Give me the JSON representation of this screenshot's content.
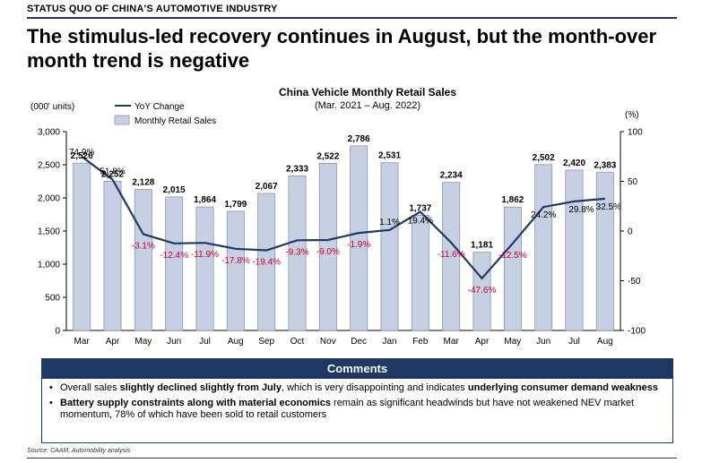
{
  "section_label": "STATUS QUO OF CHINA'S AUTOMOTIVE INDUSTRY",
  "headline": "The stimulus-led recovery continues in August, but the month-over month trend is negative",
  "chart_data": {
    "type": "bar",
    "title": "China Vehicle Monthly Retail Sales",
    "subtitle": "(Mar. 2021 – Aug. 2022)",
    "ylabel_left": "(000' units)",
    "ylabel_right": "(%)",
    "ylim_left": [
      0,
      3000
    ],
    "ylim_right": [
      -100,
      100
    ],
    "left_ticks": [
      "0",
      "500",
      "1,000",
      "1,500",
      "2,000",
      "2,500",
      "3,000"
    ],
    "right_ticks": [
      "-100",
      "-50",
      "0",
      "50",
      "100"
    ],
    "legend_position": "top-left",
    "categories": [
      "Mar",
      "Apr",
      "May",
      "Jun",
      "Jul",
      "Aug",
      "Sep",
      "Oct",
      "Nov",
      "Dec",
      "Jan",
      "Feb",
      "Mar",
      "Apr",
      "May",
      "Jun",
      "Jul",
      "Aug"
    ],
    "series": [
      {
        "name": "Monthly Retail Sales",
        "type": "bar",
        "axis": "left",
        "color": "#c7cfe2",
        "values": [
          2526,
          2252,
          2128,
          2015,
          1864,
          1799,
          2067,
          2333,
          2522,
          2786,
          2531,
          1737,
          2234,
          1181,
          1862,
          2502,
          2420,
          2383
        ],
        "labels": [
          "2,526",
          "2,252",
          "2,128",
          "2,015",
          "1,864",
          "1,799",
          "2,067",
          "2,333",
          "2,522",
          "2,786",
          "2,531",
          "1,737",
          "2,234",
          "1,181",
          "1,862",
          "2,502",
          "2,420",
          "2,383"
        ]
      },
      {
        "name": "YoY Change",
        "type": "line",
        "axis": "right",
        "color": "#1f3864",
        "values": [
          74.9,
          51.8,
          -3.1,
          -12.4,
          -11.9,
          -17.8,
          -19.4,
          -9.3,
          -9.0,
          -1.9,
          1.1,
          19.4,
          -11.6,
          -47.6,
          -12.5,
          24.2,
          29.8,
          32.5
        ],
        "labels": [
          "74.9%",
          "51.8%",
          "-3.1%",
          "-12.4%",
          "-11.9%",
          "-17.8%",
          "-19.4%",
          "-9.3%",
          "-9.0%",
          "-1.9%",
          "1.1%",
          "19.4%",
          "-11.6%",
          "-47.6%",
          "-12.5%",
          "24.2%",
          "29.8%",
          "32.5%"
        ]
      }
    ],
    "negative_label_color": "#cc0033"
  },
  "comments": {
    "header": "Comments",
    "items": [
      {
        "parts": [
          {
            "text": "Overall sales ",
            "bold": false
          },
          {
            "text": "slightly declined slightly from July",
            "bold": true
          },
          {
            "text": ", which is very disappointing and indicates ",
            "bold": false
          },
          {
            "text": "underlying consumer demand weakness",
            "bold": true
          }
        ]
      },
      {
        "parts": [
          {
            "text": "Battery supply constraints along with material economics",
            "bold": true
          },
          {
            "text": " remain as significant headwinds but have not weakened NEV market momentum,  78% of which have been sold to retail customers",
            "bold": false
          }
        ]
      }
    ]
  },
  "source": "Source: CAAM, Automobility analysis"
}
